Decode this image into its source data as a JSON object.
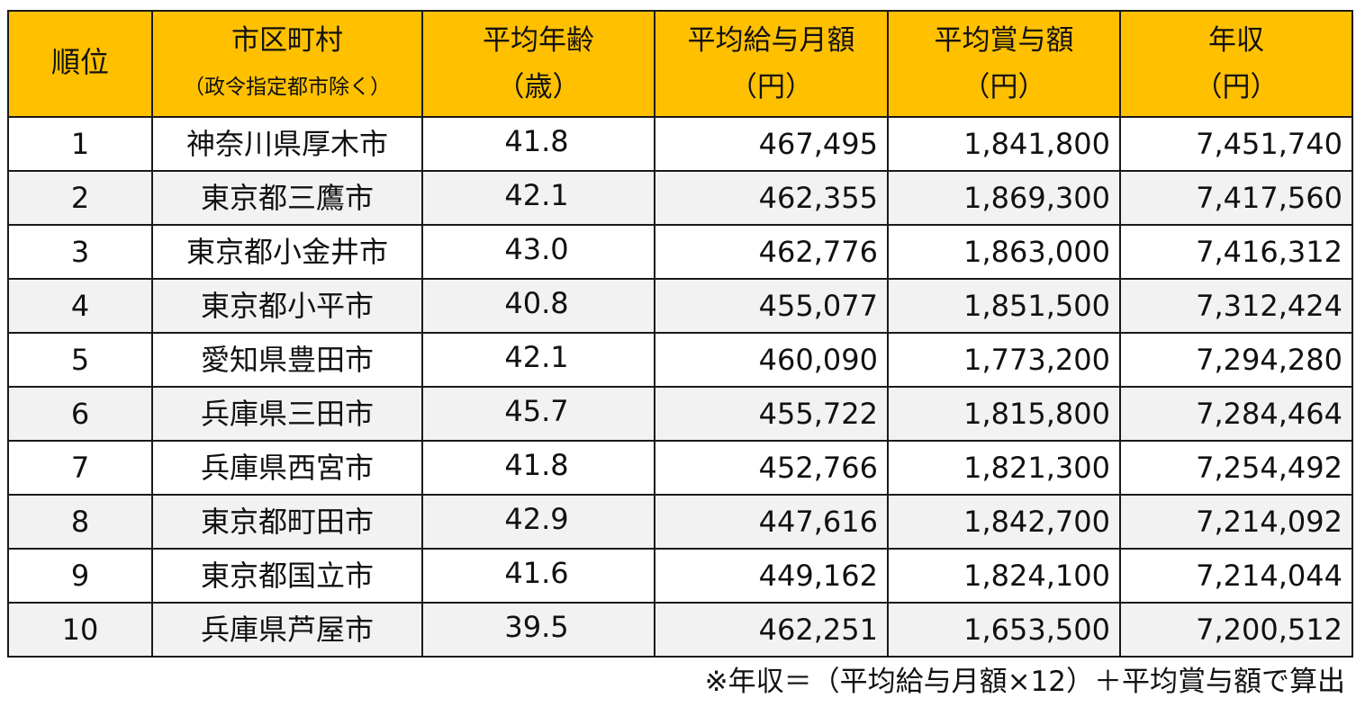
{
  "header": {
    "rank": "順位",
    "city": "市区町村",
    "city_note": "（政令指定都市除く）",
    "age": "平均年齢",
    "age_unit": "（歳）",
    "salary": "平均給与月額",
    "salary_unit": "（円）",
    "bonus": "平均賞与額",
    "bonus_unit": "（円）",
    "annual": "年収",
    "annual_unit": "（円）"
  },
  "rows": [
    {
      "rank": "1",
      "city": "神奈川県厚木市",
      "age": "41.8",
      "salary": "467,495",
      "bonus": "1,841,800",
      "annual": "7,451,740"
    },
    {
      "rank": "2",
      "city": "東京都三鷹市",
      "age": "42.1",
      "salary": "462,355",
      "bonus": "1,869,300",
      "annual": "7,417,560"
    },
    {
      "rank": "3",
      "city": "東京都小金井市",
      "age": "43.0",
      "salary": "462,776",
      "bonus": "1,863,000",
      "annual": "7,416,312"
    },
    {
      "rank": "4",
      "city": "東京都小平市",
      "age": "40.8",
      "salary": "455,077",
      "bonus": "1,851,500",
      "annual": "7,312,424"
    },
    {
      "rank": "5",
      "city": "愛知県豊田市",
      "age": "42.1",
      "salary": "460,090",
      "bonus": "1,773,200",
      "annual": "7,294,280"
    },
    {
      "rank": "6",
      "city": "兵庫県三田市",
      "age": "45.7",
      "salary": "455,722",
      "bonus": "1,815,800",
      "annual": "7,284,464"
    },
    {
      "rank": "7",
      "city": "兵庫県西宮市",
      "age": "41.8",
      "salary": "452,766",
      "bonus": "1,821,300",
      "annual": "7,254,492"
    },
    {
      "rank": "8",
      "city": "東京都町田市",
      "age": "42.9",
      "salary": "447,616",
      "bonus": "1,842,700",
      "annual": "7,214,092"
    },
    {
      "rank": "9",
      "city": "東京都国立市",
      "age": "41.6",
      "salary": "449,162",
      "bonus": "1,824,100",
      "annual": "7,214,044"
    },
    {
      "rank": "10",
      "city": "兵庫県芦屋市",
      "age": "39.5",
      "salary": "462,251",
      "bonus": "1,653,500",
      "annual": "7,200,512"
    }
  ],
  "footnote": "※年収＝（平均給与月額×12）＋平均賞与額で算出",
  "colors": {
    "header_bg": "#ffc000",
    "stripe_bg": "#f2f2f2",
    "border": "#1a1a1a"
  }
}
